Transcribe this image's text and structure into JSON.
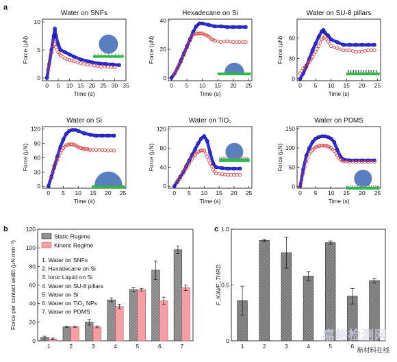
{
  "figure": {
    "panel_labels": [
      "a",
      "b",
      "c"
    ],
    "watermark_main": "嘉峪检测网",
    "watermark_sub": "新材料在线"
  },
  "colors": {
    "static_blue": "#1f1fd6",
    "kinetic_red": "#e03a3a",
    "bar_static": "#7d7d7d",
    "bar_kinetic": "#f7a3a8",
    "substrate_green": "#2db84a",
    "droplet": "#3d68b3"
  },
  "chart_data": [
    {
      "type": "line",
      "title": "Water on SNFs",
      "xlabel": "Time (s)",
      "ylabel": "Force (µN)",
      "xlim": [
        -2,
        35
      ],
      "ylim": [
        -0.5,
        10.5
      ],
      "xticks": [
        0,
        5,
        10,
        15,
        20,
        25,
        30,
        35
      ],
      "yticks": [
        0,
        5,
        10
      ],
      "series": [
        {
          "role": "static",
          "x": [
            0,
            1,
            2,
            3,
            3.5,
            4,
            5,
            6,
            8,
            10,
            12,
            15,
            18,
            20,
            23,
            26,
            29,
            32
          ],
          "y": [
            0,
            2.5,
            5,
            7.5,
            8.8,
            7.5,
            6,
            5,
            4.6,
            4.2,
            3.8,
            3.3,
            3,
            2.8,
            2.6,
            2.5,
            2.4,
            2.3
          ]
        },
        {
          "role": "kinetic",
          "x": [
            0.5,
            1,
            2,
            3,
            4,
            5,
            6,
            8,
            10,
            12,
            15,
            18,
            21,
            24,
            27,
            30
          ],
          "y": [
            1.5,
            2.5,
            4.5,
            6.5,
            5.5,
            4.6,
            4,
            3.5,
            3.2,
            3,
            2.6,
            2.4,
            2.2,
            2,
            2,
            1.9
          ]
        }
      ],
      "inset": "snfs"
    },
    {
      "type": "line",
      "title": "Hexadecane on Si",
      "xlabel": "Time (s)",
      "ylabel": "Force (µN)",
      "xlim": [
        -1,
        26
      ],
      "ylim": [
        -2,
        41
      ],
      "xticks": [
        0,
        5,
        10,
        15,
        20,
        25
      ],
      "yticks": [
        0,
        20,
        40
      ],
      "series": [
        {
          "role": "static",
          "x": [
            0,
            1,
            2,
            3,
            4,
            5,
            6,
            7,
            8,
            9,
            10,
            12,
            14,
            16,
            18,
            20,
            22,
            24
          ],
          "y": [
            0,
            3,
            7,
            12,
            17,
            22,
            27,
            32,
            36,
            38,
            38,
            37,
            36,
            36,
            35.5,
            35.5,
            35.5,
            35.5
          ]
        },
        {
          "role": "kinetic",
          "x": [
            1,
            2,
            3,
            4,
            5,
            6,
            7,
            8,
            9,
            10,
            11,
            12,
            13,
            14,
            16,
            18,
            20,
            22,
            24
          ],
          "y": [
            3,
            7,
            11,
            16,
            21,
            26,
            30,
            31,
            31,
            31,
            30,
            29,
            27,
            26,
            25,
            25.5,
            25,
            25,
            25
          ]
        }
      ],
      "inset": "cap"
    },
    {
      "type": "line",
      "title": "Water on SU-8 pillars",
      "xlabel": "Time (s)",
      "ylabel": "Force (µN)",
      "xlim": [
        -1,
        26
      ],
      "ylim": [
        -3,
        88
      ],
      "xticks": [
        0,
        5,
        10,
        15,
        20,
        25
      ],
      "yticks": [
        0,
        30,
        60
      ],
      "series": [
        {
          "role": "static",
          "x": [
            0,
            1,
            2,
            3,
            4,
            5,
            6,
            7,
            7.5,
            8,
            9,
            10,
            12,
            14,
            16,
            18,
            20,
            22,
            24
          ],
          "y": [
            0,
            8,
            18,
            30,
            42,
            52,
            62,
            70,
            72,
            68,
            64,
            58,
            54,
            50,
            50,
            50,
            50,
            50,
            50
          ]
        },
        {
          "role": "kinetic",
          "x": [
            0,
            1,
            2,
            3,
            4,
            5,
            6,
            7,
            8,
            9,
            10,
            12,
            14,
            16,
            18,
            20,
            22,
            24
          ],
          "y": [
            8,
            15,
            20,
            25,
            32,
            40,
            48,
            58,
            62,
            55,
            48,
            45,
            42,
            42,
            40,
            40,
            42,
            42
          ]
        }
      ],
      "inset": "pillars"
    },
    {
      "type": "line",
      "title": "Water on Si",
      "xlabel": "Time (s)",
      "ylabel": "Force (µN)",
      "xlim": [
        -2,
        26
      ],
      "ylim": [
        -4,
        125
      ],
      "xticks": [
        0,
        5,
        10,
        15,
        20,
        25
      ],
      "yticks": [
        0,
        30,
        60,
        90,
        120
      ],
      "series": [
        {
          "role": "static",
          "x": [
            0,
            1,
            2,
            3,
            4,
            5,
            6,
            7,
            8,
            9,
            10,
            12,
            14,
            16,
            18,
            20,
            22
          ],
          "y": [
            0,
            20,
            42,
            62,
            82,
            98,
            110,
            116,
            118,
            118,
            116,
            111,
            108,
            106,
            106,
            106,
            106
          ]
        },
        {
          "role": "kinetic",
          "x": [
            1,
            2,
            3,
            4,
            5,
            6,
            7,
            8,
            9,
            10,
            11,
            12,
            13,
            14,
            16,
            18,
            20,
            22
          ],
          "y": [
            18,
            38,
            55,
            70,
            80,
            86,
            88,
            88,
            86,
            82,
            80,
            78,
            78,
            76,
            76,
            76,
            75,
            75
          ]
        }
      ],
      "inset": "bigcap"
    },
    {
      "type": "line",
      "title": "Water on TiO₂",
      "xlabel": "Time (s)",
      "ylabel": "Force (µN)",
      "xlim": [
        -2,
        26
      ],
      "ylim": [
        -4,
        125
      ],
      "xticks": [
        0,
        5,
        10,
        15,
        20,
        25
      ],
      "yticks": [
        0,
        40,
        80,
        120
      ],
      "series": [
        {
          "role": "static",
          "x": [
            0,
            1,
            2,
            3,
            4,
            5,
            6,
            7,
            8,
            9,
            10,
            11,
            12,
            13,
            14,
            16,
            18,
            20,
            22
          ],
          "y": [
            0,
            10,
            20,
            30,
            42,
            54,
            66,
            78,
            90,
            100,
            105,
            95,
            70,
            48,
            40,
            38,
            37,
            37,
            37
          ]
        },
        {
          "role": "kinetic",
          "x": [
            1,
            2,
            3,
            4,
            5,
            6,
            7,
            8,
            9,
            10,
            11,
            12,
            13,
            14,
            16,
            18,
            20,
            22
          ],
          "y": [
            8,
            18,
            28,
            38,
            48,
            58,
            66,
            72,
            75,
            75,
            62,
            48,
            35,
            27,
            25,
            24,
            24,
            24
          ]
        }
      ],
      "inset": "tio2"
    },
    {
      "type": "line",
      "title": "Water on PDMS",
      "xlabel": "Time (s)",
      "ylabel": "Force (µN)",
      "xlim": [
        -1,
        26
      ],
      "ylim": [
        -4,
        155
      ],
      "xticks": [
        0,
        5,
        10,
        15,
        20,
        25
      ],
      "yticks": [
        0,
        50,
        100,
        150
      ],
      "series": [
        {
          "role": "static",
          "x": [
            0,
            1,
            2,
            3,
            4,
            5,
            6,
            7,
            8,
            9,
            10,
            11,
            12,
            13,
            14,
            16,
            18,
            20,
            22,
            24
          ],
          "y": [
            0,
            45,
            80,
            100,
            115,
            124,
            128,
            130,
            130,
            128,
            124,
            115,
            95,
            78,
            70,
            68,
            68,
            68,
            68,
            68
          ]
        },
        {
          "role": "kinetic",
          "x": [
            0,
            1,
            2,
            3,
            4,
            5,
            6,
            7,
            8,
            9,
            10,
            11,
            12,
            13,
            14,
            16,
            18,
            20,
            22,
            24
          ],
          "y": [
            0,
            35,
            65,
            85,
            95,
            102,
            105,
            106,
            106,
            104,
            100,
            92,
            80,
            70,
            65,
            64,
            64,
            64,
            64,
            64
          ]
        }
      ],
      "inset": "pdms"
    },
    {
      "type": "bar",
      "ylabel": "Force per contact width (µN mm⁻¹)",
      "xlabel": "",
      "ylim": [
        0,
        120
      ],
      "yticks": [
        0,
        20,
        40,
        60,
        80,
        100,
        120
      ],
      "categories": [
        "1",
        "2",
        "3",
        "4",
        "5",
        "6",
        "7"
      ],
      "series": [
        {
          "name": "Static Regime",
          "values": [
            3.5,
            15,
            20,
            44,
            55,
            76,
            98
          ],
          "errors": [
            1.5,
            0.5,
            3,
            2,
            2,
            10,
            4
          ]
        },
        {
          "name": "Kinetic Regime",
          "values": [
            2,
            15,
            15,
            37,
            55,
            43,
            57
          ],
          "errors": [
            1,
            0.5,
            1,
            2.5,
            1.5,
            4,
            3
          ]
        }
      ],
      "legend_position": "top-left",
      "annotations": [
        "1. Water on SNFs",
        "2. Hexadecane on Si",
        "3. Ionic Liquid on Si",
        "4. Water on SU-8 pillars",
        "5. Water on Si",
        "6. Water on TiO₂ NPs",
        "7. Water on PDMS"
      ]
    },
    {
      "type": "bar",
      "ylabel": "F_KIN/F_THRD",
      "xlabel": "",
      "ylim": [
        0,
        1.0
      ],
      "yticks": [
        0,
        0.5,
        1.0
      ],
      "ytick_labels": [
        "0",
        "0.5",
        "1.0"
      ],
      "categories": [
        "1",
        "2",
        "3",
        "4",
        "5",
        "6",
        "7"
      ],
      "series": [
        {
          "values": [
            0.36,
            0.9,
            0.79,
            0.58,
            0.88,
            0.4,
            0.54
          ],
          "errors": [
            0.13,
            0.01,
            0.14,
            0.04,
            0.015,
            0.07,
            0.02
          ]
        }
      ]
    }
  ]
}
